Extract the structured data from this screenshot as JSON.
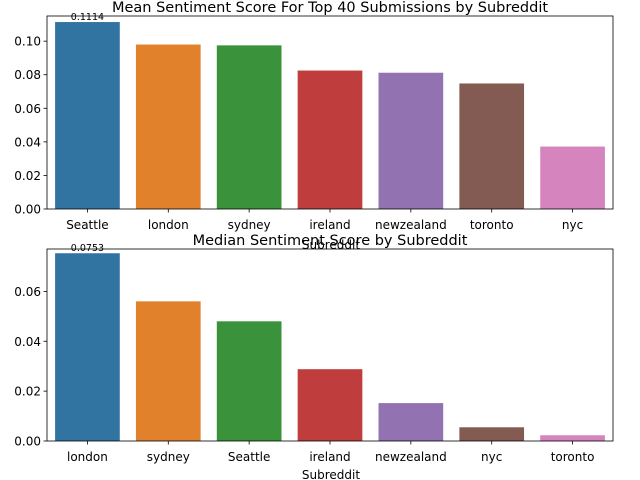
{
  "chart_data": [
    {
      "type": "bar",
      "title": "Mean Sentiment Score For Top 40 Submissions by Subreddit",
      "xlabel": "Subreddit",
      "ylabel": "",
      "categories": [
        "Seattle",
        "london",
        "sydney",
        "ireland",
        "newzealand",
        "toronto",
        "nyc"
      ],
      "values": [
        0.1114,
        0.098,
        0.0975,
        0.0825,
        0.0812,
        0.0748,
        0.0372
      ],
      "colors": [
        "#3274a1",
        "#e1812c",
        "#3a923a",
        "#c03d3e",
        "#9372b2",
        "#845b53",
        "#d684bd"
      ],
      "annotation": "0.1114",
      "ylim": [
        0,
        0.115
      ],
      "yticks": [
        "0.00",
        "0.02",
        "0.04",
        "0.06",
        "0.08",
        "0.10"
      ],
      "grid": false
    },
    {
      "type": "bar",
      "title": "Median Sentiment Score by Subreddit",
      "xlabel": "Subreddit",
      "ylabel": "",
      "categories": [
        "london",
        "sydney",
        "Seattle",
        "ireland",
        "newzealand",
        "nyc",
        "toronto"
      ],
      "values": [
        0.0753,
        0.056,
        0.048,
        0.0288,
        0.0152,
        0.0055,
        0.0023
      ],
      "colors": [
        "#3274a1",
        "#e1812c",
        "#3a923a",
        "#c03d3e",
        "#9372b2",
        "#845b53",
        "#d684bd"
      ],
      "annotation": "0.0753",
      "ylim": [
        0,
        0.077
      ],
      "yticks": [
        "0.00",
        "0.02",
        "0.04",
        "0.06"
      ],
      "grid": false
    }
  ]
}
